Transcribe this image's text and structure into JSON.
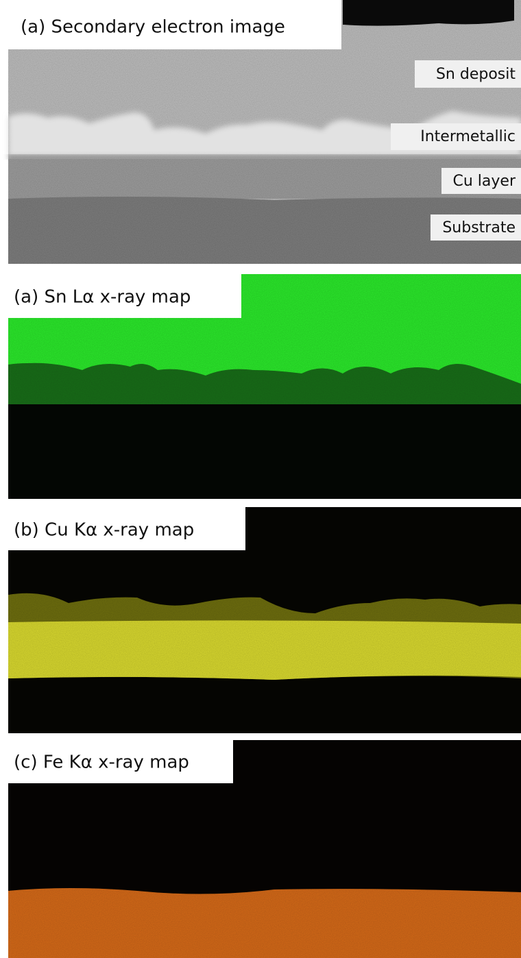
{
  "panels": [
    {
      "title": "(a) Secondary electron image",
      "labels": [
        "Sn deposit",
        "Intermetallic",
        "Cu layer",
        "Substrate"
      ]
    },
    {
      "title": "(a) Sn Lα x-ray map"
    },
    {
      "title": "(b) Cu Kα x-ray map"
    },
    {
      "title": "(c) Fe Kα x-ray map"
    }
  ]
}
